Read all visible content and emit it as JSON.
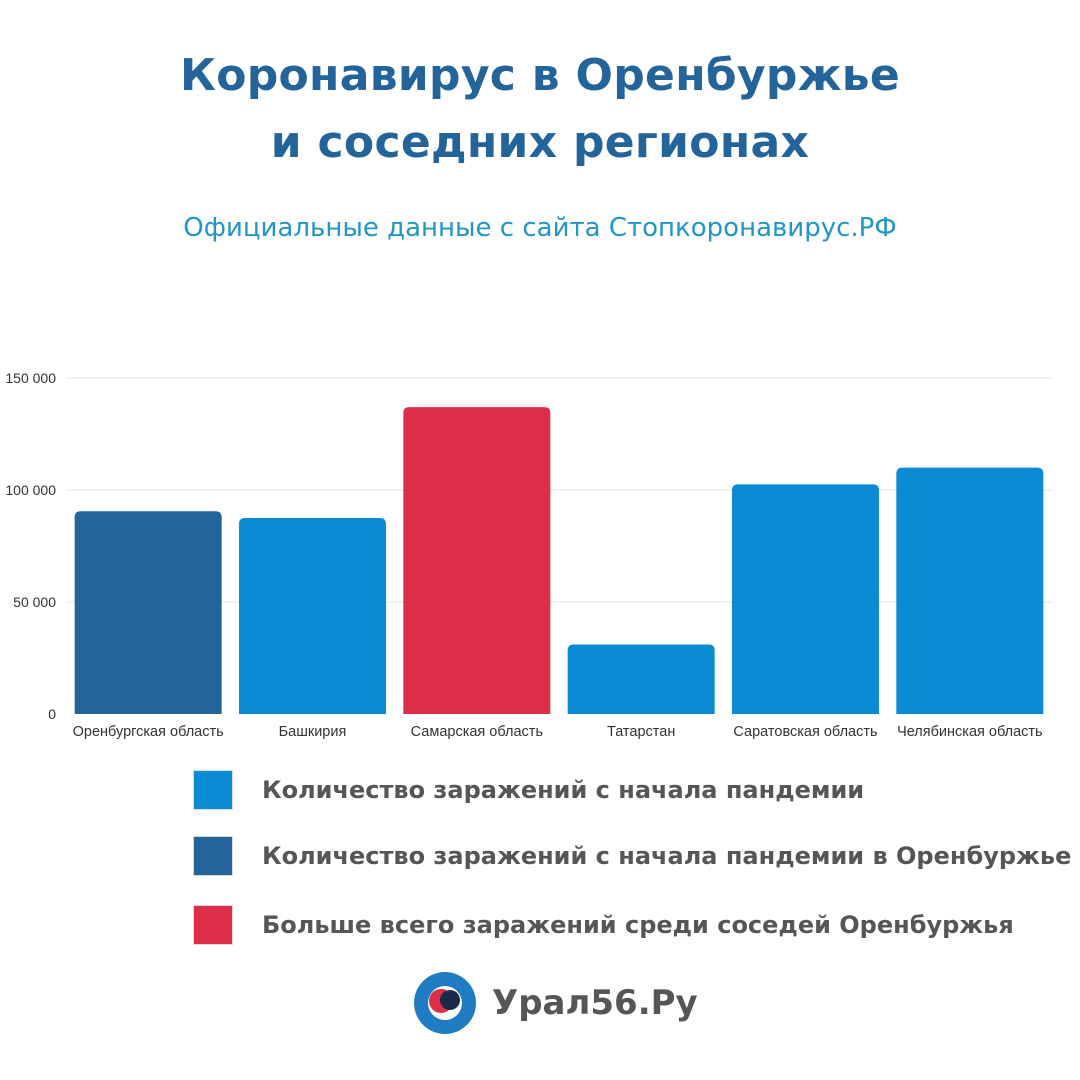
{
  "header": {
    "title_line1": "Коронавирус в Оренбуржье",
    "title_line2": "и соседних регионах",
    "subtitle": "Официальные данные с сайта Стопкоронавирус.РФ"
  },
  "colors": {
    "title": "#23649a",
    "subtitle": "#2196c7",
    "neighbor": "#0a8bd3",
    "orenburg": "#23649a",
    "highlight": "#dc2d49",
    "grid": "#e6e6e6",
    "axis_text": "#333333",
    "legend_text": "#565656"
  },
  "chart_data": {
    "type": "bar",
    "title": "",
    "xlabel": "",
    "ylabel": "",
    "ylim": [
      0,
      150000
    ],
    "yticks": [
      0,
      50000,
      100000,
      150000
    ],
    "ytick_labels": [
      "0",
      "50 000",
      "100 000",
      "150 000"
    ],
    "grid": true,
    "categories": [
      "Оренбургская область",
      "Башкирия",
      "Самарская область",
      "Татарстан",
      "Саратовская область",
      "Челябинская область"
    ],
    "values": [
      90500,
      87500,
      137000,
      31000,
      102500,
      110000
    ],
    "bar_groups": [
      "orenburg",
      "neighbor",
      "highlight",
      "neighbor",
      "neighbor",
      "neighbor"
    ]
  },
  "legend": {
    "items": [
      {
        "label": "Количество заражений с начала пандемии",
        "group": "neighbor"
      },
      {
        "label": "Количество заражений с начала пандемии в Оренбуржье",
        "group": "orenburg"
      },
      {
        "label": "Больше всего заражений среди соседей Оренбуржья",
        "group": "highlight"
      }
    ]
  },
  "brand": {
    "name": "Урал56.Ру",
    "logo_icon": "ural56-logo-icon"
  }
}
